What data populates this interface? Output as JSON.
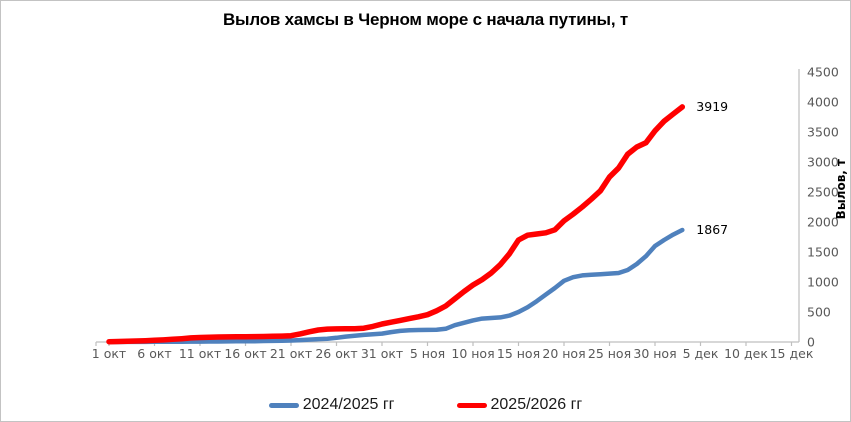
{
  "chart_data": {
    "type": "line",
    "title": "Вылов хамсы в Черном море с начала путины, т",
    "y_axis_title": "Вылов, т",
    "ylim": [
      0,
      4500
    ],
    "y_tick_step": 500,
    "y_tick_labels": [
      "0",
      "500",
      "1000",
      "1500",
      "2000",
      "2500",
      "3000",
      "3500",
      "4000",
      "4500"
    ],
    "x_tick_labels": [
      "1 окт",
      "6 окт",
      "11 окт",
      "16 окт",
      "21 окт",
      "26 окт",
      "31 окт",
      "5 ноя",
      "10 ноя",
      "15 ноя",
      "20 ноя",
      "25 ноя",
      "30 ноя",
      "5 дек",
      "10 дек",
      "15 дек"
    ],
    "x_tick_days": [
      1,
      6,
      11,
      16,
      21,
      26,
      31,
      36,
      41,
      46,
      51,
      56,
      61,
      66,
      71,
      76
    ],
    "x_axis_total_days": 76,
    "grid": false,
    "legend_position": "bottom",
    "series": [
      {
        "name": "2024/2025 гг",
        "color": "#4F81BD",
        "stroke_width": 4.5,
        "end_label": "1867",
        "start_day": 1,
        "values": [
          0,
          0,
          1,
          1,
          2,
          3,
          3,
          4,
          5,
          6,
          7,
          8,
          9,
          10,
          11,
          12,
          14,
          16,
          18,
          20,
          25,
          32,
          40,
          48,
          55,
          70,
          90,
          105,
          118,
          130,
          140,
          165,
          185,
          195,
          200,
          202,
          205,
          220,
          280,
          320,
          360,
          390,
          400,
          410,
          440,
          500,
          580,
          680,
          790,
          900,
          1020,
          1080,
          1110,
          1120,
          1130,
          1140,
          1150,
          1200,
          1300,
          1430,
          1600,
          1700,
          1790,
          1867
        ]
      },
      {
        "name": "2025/2026 гг",
        "color": "#FF0000",
        "stroke_width": 5.5,
        "end_label": "3919",
        "start_day": 1,
        "values": [
          5,
          8,
          12,
          16,
          22,
          28,
          35,
          45,
          55,
          68,
          75,
          80,
          83,
          85,
          86,
          88,
          90,
          92,
          95,
          98,
          105,
          135,
          170,
          200,
          215,
          218,
          220,
          222,
          230,
          260,
          300,
          330,
          360,
          390,
          420,
          455,
          520,
          600,
          720,
          840,
          950,
          1040,
          1150,
          1290,
          1470,
          1700,
          1780,
          1800,
          1820,
          1870,
          2020,
          2130,
          2250,
          2380,
          2520,
          2750,
          2900,
          3130,
          3250,
          3320,
          3520,
          3680,
          3800,
          3919
        ]
      }
    ]
  },
  "colors": {
    "axis_line": "#BFBFBF",
    "tick_text": "#595959",
    "data_label_text": "#000000",
    "background": "#FFFFFF"
  }
}
